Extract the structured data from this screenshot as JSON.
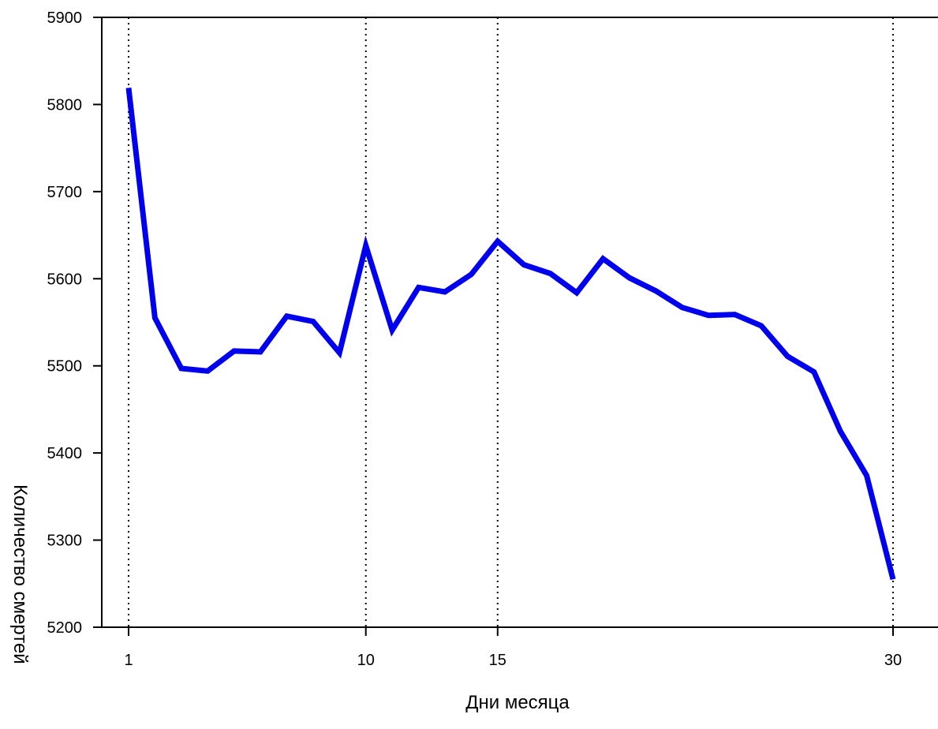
{
  "chart_data": {
    "type": "line",
    "title": "",
    "xlabel": "Дни месяца",
    "ylabel": "Количество смертей",
    "xlim": [
      0,
      31
    ],
    "ylim": [
      5200,
      5900
    ],
    "x_ticks": [
      1,
      10,
      15,
      30
    ],
    "y_ticks": [
      5200,
      5300,
      5400,
      5500,
      5600,
      5700,
      5800,
      5900
    ],
    "x_gridlines": [
      1,
      10,
      15,
      30
    ],
    "grid": "vertical dotted at labeled x ticks",
    "series": [
      {
        "color": "#0000ee",
        "x": [
          1,
          2,
          3,
          4,
          5,
          6,
          7,
          8,
          9,
          10,
          11,
          12,
          13,
          14,
          15,
          16,
          17,
          18,
          19,
          20,
          21,
          22,
          23,
          24,
          25,
          26,
          27,
          28,
          29,
          30
        ],
        "y": [
          5819,
          5555,
          5497,
          5494,
          5517,
          5516,
          5557,
          5551,
          5515,
          5638,
          5541,
          5590,
          5585,
          5605,
          5643,
          5616,
          5606,
          5584,
          5623,
          5601,
          5586,
          5567,
          5558,
          5559,
          5546,
          5511,
          5493,
          5425,
          5374,
          5255
        ]
      }
    ]
  }
}
